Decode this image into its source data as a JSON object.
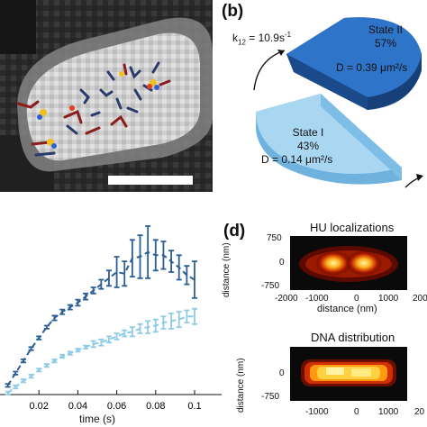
{
  "panel_b": {
    "letter": "(b)",
    "rate_label": "k",
    "rate_sub": "12",
    "rate_value": " = 10.9s",
    "rate_sup": "-1",
    "state2": {
      "name": "State II",
      "percent": "57%",
      "diffusion": "D = 0.39 μm²/s"
    },
    "state1": {
      "name": "State I",
      "percent": "43%",
      "diffusion": "D = 0.14 μm²/s"
    },
    "chart_data": {
      "type": "pie",
      "categories": [
        "State I",
        "State II"
      ],
      "values": [
        43,
        57
      ]
    }
  },
  "panel_c": {
    "xlabel": "time (s)",
    "xticks": [
      "0.02",
      "0.04",
      "0.06",
      "0.08",
      "0.1"
    ],
    "chart_data": {
      "type": "line",
      "xlabel": "time (s)",
      "x": [
        0.004,
        0.008,
        0.012,
        0.016,
        0.02,
        0.024,
        0.028,
        0.032,
        0.036,
        0.04,
        0.044,
        0.048,
        0.052,
        0.056,
        0.06,
        0.064,
        0.068,
        0.072,
        0.076,
        0.08,
        0.084,
        0.088,
        0.092,
        0.096,
        0.1
      ],
      "series": [
        {
          "color": "#2c5f93",
          "values": [
            0.06,
            0.14,
            0.22,
            0.3,
            0.37,
            0.44,
            0.5,
            0.54,
            0.57,
            0.6,
            0.64,
            0.68,
            0.72,
            0.76,
            0.8,
            0.79,
            0.89,
            0.9,
            0.93,
            0.91,
            0.91,
            0.87,
            0.83,
            0.78,
            0.75
          ],
          "errors": [
            0.01,
            0.01,
            0.01,
            0.01,
            0.01,
            0.01,
            0.015,
            0.015,
            0.015,
            0.02,
            0.02,
            0.02,
            0.03,
            0.05,
            0.1,
            0.08,
            0.12,
            0.14,
            0.17,
            0.1,
            0.09,
            0.07,
            0.08,
            0.06,
            0.12
          ]
        },
        {
          "color": "#8ecbe6",
          "values": [
            0.01,
            0.05,
            0.09,
            0.12,
            0.16,
            0.19,
            0.22,
            0.25,
            0.27,
            0.29,
            0.31,
            0.33,
            0.34,
            0.36,
            0.38,
            0.4,
            0.41,
            0.43,
            0.44,
            0.45,
            0.47,
            0.48,
            0.49,
            0.51,
            0.51
          ],
          "errors": [
            0.01,
            0.01,
            0.01,
            0.01,
            0.01,
            0.01,
            0.01,
            0.01,
            0.01,
            0.01,
            0.01,
            0.02,
            0.02,
            0.02,
            0.02,
            0.02,
            0.03,
            0.03,
            0.04,
            0.04,
            0.04,
            0.05,
            0.05,
            0.04,
            0.05
          ]
        }
      ]
    }
  },
  "panel_d": {
    "letter": "(d)",
    "hu_title": "HU localizations",
    "dna_title": "DNA distribution",
    "ylabel": "distance (nm)",
    "xlabel": "distance (nm)",
    "yticks": [
      "750",
      "0",
      "-750"
    ],
    "xticks": [
      "-2000",
      "-1000",
      "0",
      "1000",
      "200"
    ],
    "xticks_bottom": [
      "-1000",
      "0",
      "1000",
      "20"
    ]
  }
}
